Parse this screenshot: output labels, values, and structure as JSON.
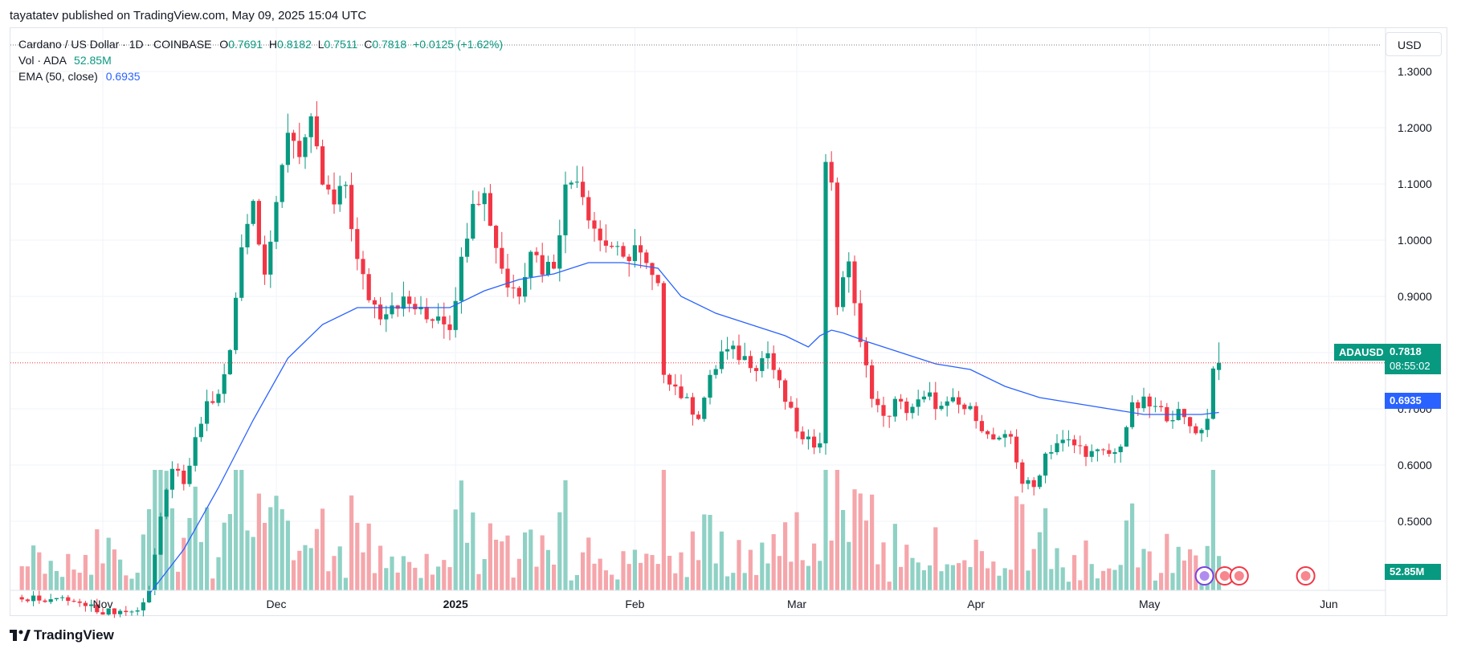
{
  "publisher_line": "tayatatev published on TradingView.com, May 09, 2025 15:04 UTC",
  "legend": {
    "symbol": "Cardano / US Dollar · 1D · COINBASE",
    "open_label": "O",
    "open": "0.7691",
    "high_label": "H",
    "high": "0.8182",
    "low_label": "L",
    "low": "0.7511",
    "close_label": "C",
    "close": "0.7818",
    "change": "+0.0125 (+1.62%)",
    "vol_label": "Vol · ADA",
    "vol": "52.85M",
    "ema_label": "EMA (50, close)",
    "ema": "0.6935"
  },
  "currency": "USD",
  "price_tags": {
    "symbol": "ADAUSD",
    "last_price": "0.7818",
    "countdown": "08:55:02",
    "ema_value": "0.6935",
    "volume_value": "52.85M"
  },
  "footer_logo": "TradingView",
  "colors": {
    "up": "#089981",
    "down": "#f23645",
    "ema": "#2962ff",
    "up_volume": "#8fd1c5",
    "down_volume": "#f5a6ab"
  },
  "chart_data": {
    "type": "candlestick",
    "symbol": "ADAUSD",
    "interval": "1D",
    "ylim": [
      0.38,
      1.32
    ],
    "y_ticks": [
      "0.5000",
      "0.6000",
      "0.7000",
      "0.8000",
      "0.9000",
      "1.0000",
      "1.1000",
      "1.2000",
      "1.3000"
    ],
    "x_ticks": [
      "Nov",
      "Dec",
      "2025",
      "Feb",
      "Mar",
      "Apr",
      "May",
      "Jun"
    ],
    "x_tick_days": [
      0,
      30,
      61,
      92,
      120,
      151,
      181,
      212
    ],
    "grid": true,
    "series": [
      {
        "name": "Price",
        "start_day": -14,
        "close_points": [
          [
            -14,
            0.365
          ],
          [
            -6,
            0.36
          ],
          [
            0,
            0.34
          ],
          [
            6,
            0.34
          ],
          [
            8,
            0.38
          ],
          [
            10,
            0.5
          ],
          [
            12,
            0.6
          ],
          [
            14,
            0.56
          ],
          [
            16,
            0.64
          ],
          [
            18,
            0.71
          ],
          [
            20,
            0.72
          ],
          [
            22,
            0.8
          ],
          [
            24,
            1.0
          ],
          [
            26,
            1.07
          ],
          [
            28,
            0.95
          ],
          [
            30,
            1.05
          ],
          [
            32,
            1.2
          ],
          [
            34,
            1.16
          ],
          [
            36,
            1.2
          ],
          [
            38,
            1.1
          ],
          [
            40,
            1.06
          ],
          [
            42,
            1.1
          ],
          [
            44,
            0.96
          ],
          [
            46,
            0.9
          ],
          [
            48,
            0.87
          ],
          [
            50,
            0.89
          ],
          [
            52,
            0.89
          ],
          [
            54,
            0.88
          ],
          [
            56,
            0.86
          ],
          [
            58,
            0.87
          ],
          [
            60,
            0.85
          ],
          [
            62,
            0.96
          ],
          [
            64,
            1.08
          ],
          [
            66,
            1.08
          ],
          [
            68,
            0.99
          ],
          [
            70,
            0.92
          ],
          [
            72,
            0.91
          ],
          [
            74,
            0.99
          ],
          [
            76,
            0.95
          ],
          [
            78,
            0.96
          ],
          [
            80,
            1.09
          ],
          [
            82,
            1.12
          ],
          [
            84,
            1.05
          ],
          [
            86,
            1.0
          ],
          [
            88,
            0.99
          ],
          [
            90,
            0.96
          ],
          [
            92,
            0.99
          ],
          [
            94,
            0.95
          ],
          [
            96,
            0.91
          ],
          [
            97,
            0.77
          ],
          [
            99,
            0.74
          ],
          [
            101,
            0.71
          ],
          [
            103,
            0.69
          ],
          [
            105,
            0.75
          ],
          [
            107,
            0.8
          ],
          [
            109,
            0.8
          ],
          [
            111,
            0.79
          ],
          [
            113,
            0.78
          ],
          [
            115,
            0.8
          ],
          [
            117,
            0.74
          ],
          [
            119,
            0.69
          ],
          [
            121,
            0.64
          ],
          [
            123,
            0.64
          ],
          [
            124,
            0.65
          ],
          [
            125,
            1.13
          ],
          [
            126,
            1.11
          ],
          [
            127,
            0.89
          ],
          [
            128,
            0.92
          ],
          [
            129,
            0.97
          ],
          [
            131,
            0.81
          ],
          [
            133,
            0.73
          ],
          [
            135,
            0.68
          ],
          [
            137,
            0.71
          ],
          [
            139,
            0.7
          ],
          [
            141,
            0.71
          ],
          [
            143,
            0.72
          ],
          [
            145,
            0.7
          ],
          [
            147,
            0.71
          ],
          [
            149,
            0.7
          ],
          [
            151,
            0.69
          ],
          [
            153,
            0.65
          ],
          [
            155,
            0.64
          ],
          [
            157,
            0.65
          ],
          [
            159,
            0.57
          ],
          [
            161,
            0.56
          ],
          [
            163,
            0.62
          ],
          [
            165,
            0.64
          ],
          [
            167,
            0.64
          ],
          [
            169,
            0.63
          ],
          [
            171,
            0.62
          ],
          [
            173,
            0.62
          ],
          [
            175,
            0.62
          ],
          [
            176,
            0.64
          ],
          [
            178,
            0.7
          ],
          [
            180,
            0.71
          ],
          [
            182,
            0.7
          ],
          [
            184,
            0.69
          ],
          [
            186,
            0.69
          ],
          [
            188,
            0.67
          ],
          [
            190,
            0.66
          ],
          [
            191,
            0.69
          ],
          [
            192,
            0.77
          ],
          [
            193,
            0.7818
          ]
        ]
      },
      {
        "name": "EMA (50, close)",
        "points": [
          [
            8,
            0.37
          ],
          [
            14,
            0.45
          ],
          [
            20,
            0.56
          ],
          [
            26,
            0.68
          ],
          [
            32,
            0.79
          ],
          [
            38,
            0.85
          ],
          [
            44,
            0.88
          ],
          [
            50,
            0.88
          ],
          [
            56,
            0.88
          ],
          [
            60,
            0.88
          ],
          [
            66,
            0.91
          ],
          [
            72,
            0.93
          ],
          [
            78,
            0.94
          ],
          [
            84,
            0.96
          ],
          [
            90,
            0.96
          ],
          [
            96,
            0.95
          ],
          [
            100,
            0.9
          ],
          [
            106,
            0.87
          ],
          [
            112,
            0.85
          ],
          [
            118,
            0.83
          ],
          [
            122,
            0.81
          ],
          [
            124,
            0.83
          ],
          [
            126,
            0.84
          ],
          [
            128,
            0.835
          ],
          [
            132,
            0.82
          ],
          [
            138,
            0.8
          ],
          [
            144,
            0.78
          ],
          [
            150,
            0.77
          ],
          [
            156,
            0.74
          ],
          [
            162,
            0.72
          ],
          [
            168,
            0.71
          ],
          [
            174,
            0.7
          ],
          [
            180,
            0.69
          ],
          [
            186,
            0.69
          ],
          [
            190,
            0.69
          ],
          [
            193,
            0.6935
          ]
        ]
      },
      {
        "name": "Vol · ADA",
        "values_note": "52.85M"
      }
    ]
  }
}
